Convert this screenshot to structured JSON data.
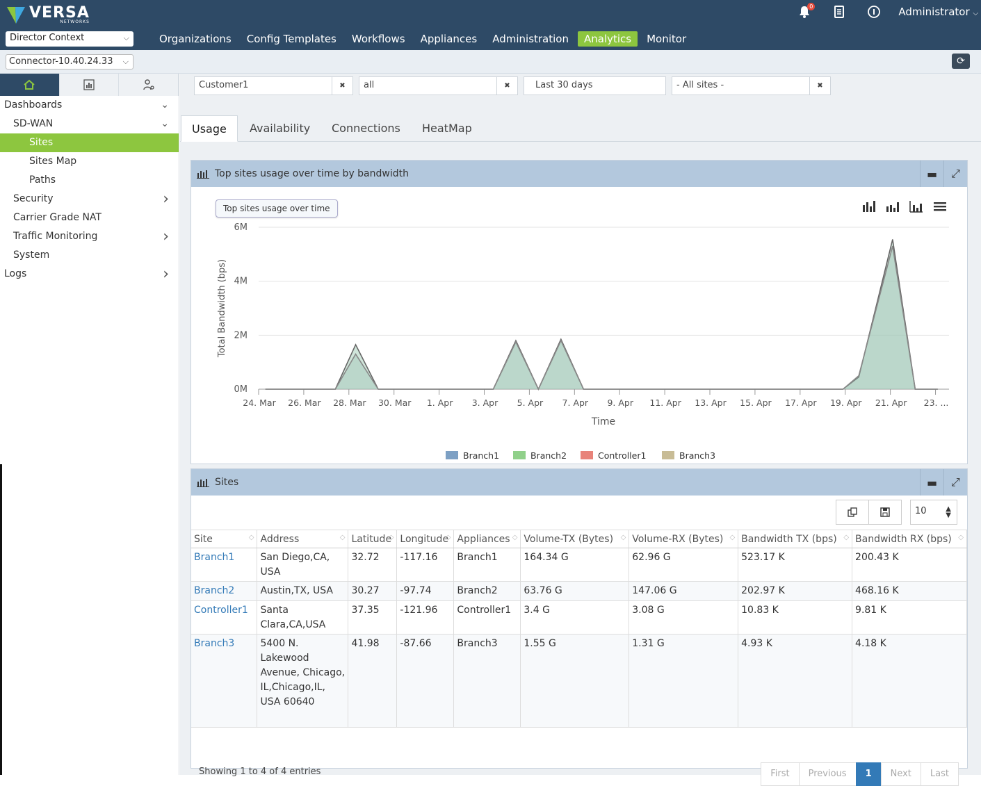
{
  "brand": {
    "name": "VERSA",
    "sub": "NETWORKS"
  },
  "header": {
    "context_select": "Director Context",
    "nav": [
      "Organizations",
      "Config Templates",
      "Workflows",
      "Appliances",
      "Administration",
      "Analytics",
      "Monitor"
    ],
    "active_nav": "Analytics",
    "notification_count": "0",
    "user": "Administrator"
  },
  "connector": {
    "value": "Connector-10.40.24.33"
  },
  "sidebar": {
    "items": [
      {
        "label": "Dashboards",
        "level": 0,
        "arrow": "down"
      },
      {
        "label": "SD-WAN",
        "level": 1,
        "arrow": "down"
      },
      {
        "label": "Sites",
        "level": 2,
        "active": true
      },
      {
        "label": "Sites Map",
        "level": 2
      },
      {
        "label": "Paths",
        "level": 2
      },
      {
        "label": "Security",
        "level": 1,
        "arrow": "right"
      },
      {
        "label": "Carrier Grade NAT",
        "level": 1
      },
      {
        "label": "Traffic Monitoring",
        "level": 1,
        "arrow": "right"
      },
      {
        "label": "System",
        "level": 1
      },
      {
        "label": "Logs",
        "level": 0,
        "arrow": "right"
      }
    ]
  },
  "filters": {
    "customer": "Customer1",
    "scope": "all",
    "range": "Last 30 days",
    "sites": "- All sites -"
  },
  "tabs": [
    "Usage",
    "Availability",
    "Connections",
    "HeatMap"
  ],
  "chart_panel": {
    "title": "Top sites usage over time by bandwidth",
    "tooltip": "Top sites usage over time"
  },
  "chart_data": {
    "type": "area",
    "title": "",
    "xlabel": "Time",
    "ylabel": "Total Bandwidth (bps)",
    "y_ticks": [
      "0M",
      "2M",
      "4M",
      "6M"
    ],
    "ylim": [
      0,
      6000000
    ],
    "x_tick_labels": [
      "24. Mar",
      "26. Mar",
      "28. Mar",
      "30. Mar",
      "1. Apr",
      "3. Apr",
      "5. Apr",
      "7. Apr",
      "9. Apr",
      "11. Apr",
      "13. Apr",
      "15. Apr",
      "17. Apr",
      "19. Apr",
      "21. Apr",
      "23. ..."
    ],
    "x_days": [
      0,
      2,
      4,
      6,
      8,
      10,
      12,
      14,
      16,
      18,
      20,
      22,
      24,
      26,
      28,
      30
    ],
    "legend": [
      "Branch1",
      "Branch2",
      "Controller1",
      "Branch3"
    ],
    "legend_colors": [
      "#7da0c4",
      "#90d08a",
      "#e8837a",
      "#c8bc96"
    ],
    "series": [
      {
        "name": "Branch2",
        "points": [
          [
            0.3,
            0
          ],
          [
            3.4,
            0
          ],
          [
            4.3,
            1650000
          ],
          [
            5.3,
            0
          ],
          [
            10.4,
            0
          ],
          [
            11.4,
            1800000
          ],
          [
            12.4,
            0
          ],
          [
            13.4,
            1850000
          ],
          [
            14.4,
            0
          ],
          [
            25.9,
            0
          ],
          [
            26.6,
            450000
          ],
          [
            28.1,
            5550000
          ],
          [
            29.1,
            0
          ],
          [
            30.1,
            0
          ]
        ]
      },
      {
        "name": "Branch1",
        "points": [
          [
            0.3,
            0
          ],
          [
            3.4,
            0
          ],
          [
            4.3,
            1300000
          ],
          [
            5.3,
            0
          ],
          [
            10.4,
            0
          ],
          [
            11.4,
            1750000
          ],
          [
            12.4,
            0
          ],
          [
            13.4,
            1800000
          ],
          [
            14.4,
            0
          ],
          [
            25.9,
            0
          ],
          [
            26.6,
            500000
          ],
          [
            28.1,
            5300000
          ],
          [
            29.1,
            0
          ],
          [
            30.1,
            0
          ]
        ]
      }
    ]
  },
  "sites_panel": {
    "title": "Sites",
    "page_size": "10"
  },
  "table": {
    "columns": [
      "Site",
      "Address",
      "Latitude",
      "Longitude",
      "Appliances",
      "Volume-TX (Bytes)",
      "Volume-RX (Bytes)",
      "Bandwidth TX (bps)",
      "Bandwidth RX (bps)"
    ],
    "rows": [
      [
        "Branch1",
        "San Diego,CA, USA",
        "32.72",
        "-117.16",
        "Branch1",
        "164.34 G",
        "62.96 G",
        "523.17 K",
        "200.43 K"
      ],
      [
        "Branch2",
        "Austin,TX, USA",
        "30.27",
        "-97.74",
        "Branch2",
        "63.76 G",
        "147.06 G",
        "202.97 K",
        "468.16 K"
      ],
      [
        "Controller1",
        "Santa Clara,CA,USA",
        "37.35",
        "-121.96",
        "Controller1",
        "3.4 G",
        "3.08 G",
        "10.83 K",
        "9.81 K"
      ],
      [
        "Branch3",
        "5400 N. Lakewood Avenue, Chicago, IL,Chicago,IL, USA 60640",
        "41.98",
        "-87.66",
        "Branch3",
        "1.55 G",
        "1.31 G",
        "4.93 K",
        "4.18 K"
      ]
    ],
    "showing": "Showing 1 to 4 of 4 entries",
    "pager": [
      "First",
      "Previous",
      "1",
      "Next",
      "Last"
    ],
    "active_page": "1"
  }
}
